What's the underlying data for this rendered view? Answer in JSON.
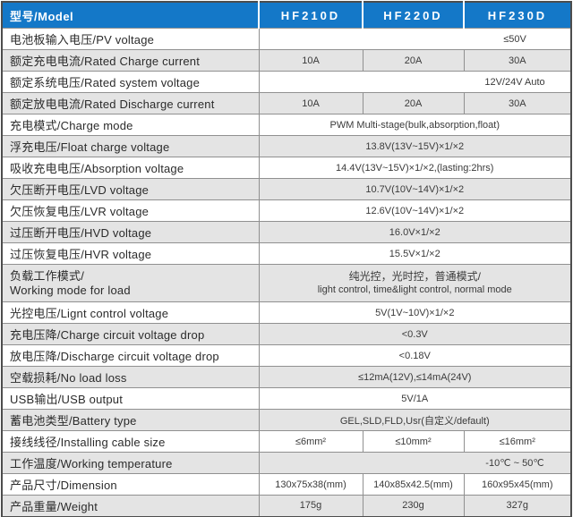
{
  "colors": {
    "header_bg": "#1478c8",
    "header_text": "#ffffff",
    "row_alt_bg": "#e4e4e4",
    "inner_border": "#909090",
    "outer_border": "#4d4d4d",
    "body_text": "#2b2b2b"
  },
  "header": {
    "model_label": "型号/Model",
    "models": [
      "HF210D",
      "HF220D",
      "HF230D"
    ]
  },
  "rows": [
    {
      "label": "电池板输入电压/PV voltage",
      "type": "span-right",
      "value": "≤50V"
    },
    {
      "label": "额定充电电流/Rated Charge current",
      "type": "cols",
      "values": [
        "10A",
        "20A",
        "30A"
      ]
    },
    {
      "label": "额定系统电压/Rated system voltage",
      "type": "span-right",
      "value": "12V/24V Auto"
    },
    {
      "label": "额定放电电流/Rated Discharge current",
      "type": "cols",
      "values": [
        "10A",
        "20A",
        "30A"
      ]
    },
    {
      "label": "充电模式/Charge mode",
      "type": "span",
      "value": "PWM Multi-stage(bulk,absorption,float)"
    },
    {
      "label": "浮充电压/Float charge voltage",
      "type": "span",
      "value": "13.8V(13V~15V)×1/×2"
    },
    {
      "label": "吸收充电电压/Absorption voltage",
      "type": "span",
      "value": "14.4V(13V~15V)×1/×2,(lasting:2hrs)"
    },
    {
      "label": "欠压断开电压/LVD voltage",
      "type": "span",
      "value": "10.7V(10V~14V)×1/×2"
    },
    {
      "label": "欠压恢复电压/LVR voltage",
      "type": "span",
      "value": "12.6V(10V~14V)×1/×2"
    },
    {
      "label": "过压断开电压/HVD voltage",
      "type": "span",
      "value": "16.0V×1/×2"
    },
    {
      "label": "过压恢复电压/HVR voltage",
      "type": "span",
      "value": "15.5V×1/×2"
    },
    {
      "label_line1": "负载工作模式/",
      "label_line2": "Working mode for load",
      "type": "span2",
      "value_line1": "纯光控，光时控，普通模式/",
      "value_line2": "light control, time&light control, normal mode"
    },
    {
      "label": "光控电压/Lignt control voltage",
      "type": "span",
      "value": "5V(1V~10V)×1/×2"
    },
    {
      "label": "充电压降/Charge circuit voltage drop",
      "type": "span",
      "value": "<0.3V"
    },
    {
      "label": "放电压降/Discharge circuit voltage drop",
      "type": "span",
      "value": "<0.18V"
    },
    {
      "label": "空载损耗/No load loss",
      "type": "span",
      "value": "≤12mA(12V),≤14mA(24V)"
    },
    {
      "label": "USB输出/USB output",
      "type": "span",
      "value": "5V/1A"
    },
    {
      "label": "蓄电池类型/Battery type",
      "type": "span",
      "value": "GEL,SLD,FLD,Usr(自定义/default)"
    },
    {
      "label": "接线线径/Installing cable size",
      "type": "cols",
      "values": [
        "≤6mm²",
        "≤10mm²",
        "≤16mm²"
      ]
    },
    {
      "label": "工作温度/Working temperature",
      "type": "span-right",
      "value": "-10℃ ~ 50℃"
    },
    {
      "label": "产品尺寸/Dimension",
      "type": "cols",
      "values": [
        "130x75x38(mm)",
        "140x85x42.5(mm)",
        "160x95x45(mm)"
      ]
    },
    {
      "label": "产品重量/Weight",
      "type": "cols",
      "values": [
        "175g",
        "230g",
        "327g"
      ]
    }
  ]
}
